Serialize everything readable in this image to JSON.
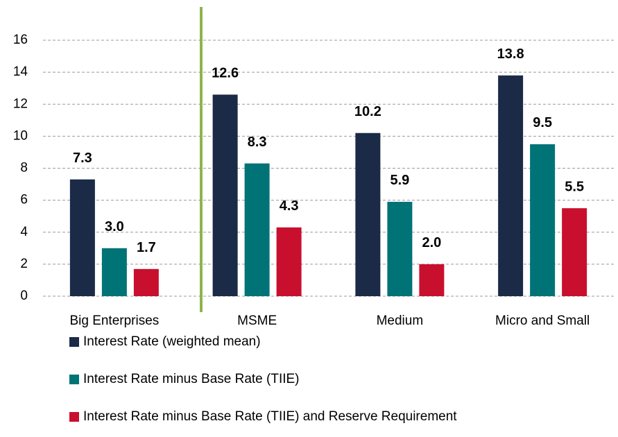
{
  "chart_data": {
    "type": "bar",
    "categories": [
      "Big Enterprises",
      "MSME",
      "Medium",
      "Micro and Small"
    ],
    "series": [
      {
        "name": "Interest Rate (weighted mean)",
        "color": "#1b2a47",
        "values": [
          7.3,
          12.6,
          10.2,
          13.8
        ],
        "value_labels": [
          "7.3",
          "12.6",
          "10.2",
          "13.8"
        ]
      },
      {
        "name": "Interest Rate minus Base Rate (TIIE)",
        "color": "#007377",
        "values": [
          3.0,
          8.3,
          5.9,
          9.5
        ],
        "value_labels": [
          "3.0",
          "8.3",
          "5.9",
          "9.5"
        ]
      },
      {
        "name": "Interest Rate minus Base Rate (TIIE) and Reserve Requirement",
        "color": "#c8102e",
        "values": [
          1.7,
          4.3,
          2.0,
          5.5
        ],
        "value_labels": [
          "1.7",
          "4.3",
          "2.0",
          "5.5"
        ]
      }
    ],
    "ylim": [
      0,
      16
    ],
    "yticks": [
      0,
      2,
      4,
      6,
      8,
      10,
      12,
      14,
      16
    ],
    "grid": true
  }
}
